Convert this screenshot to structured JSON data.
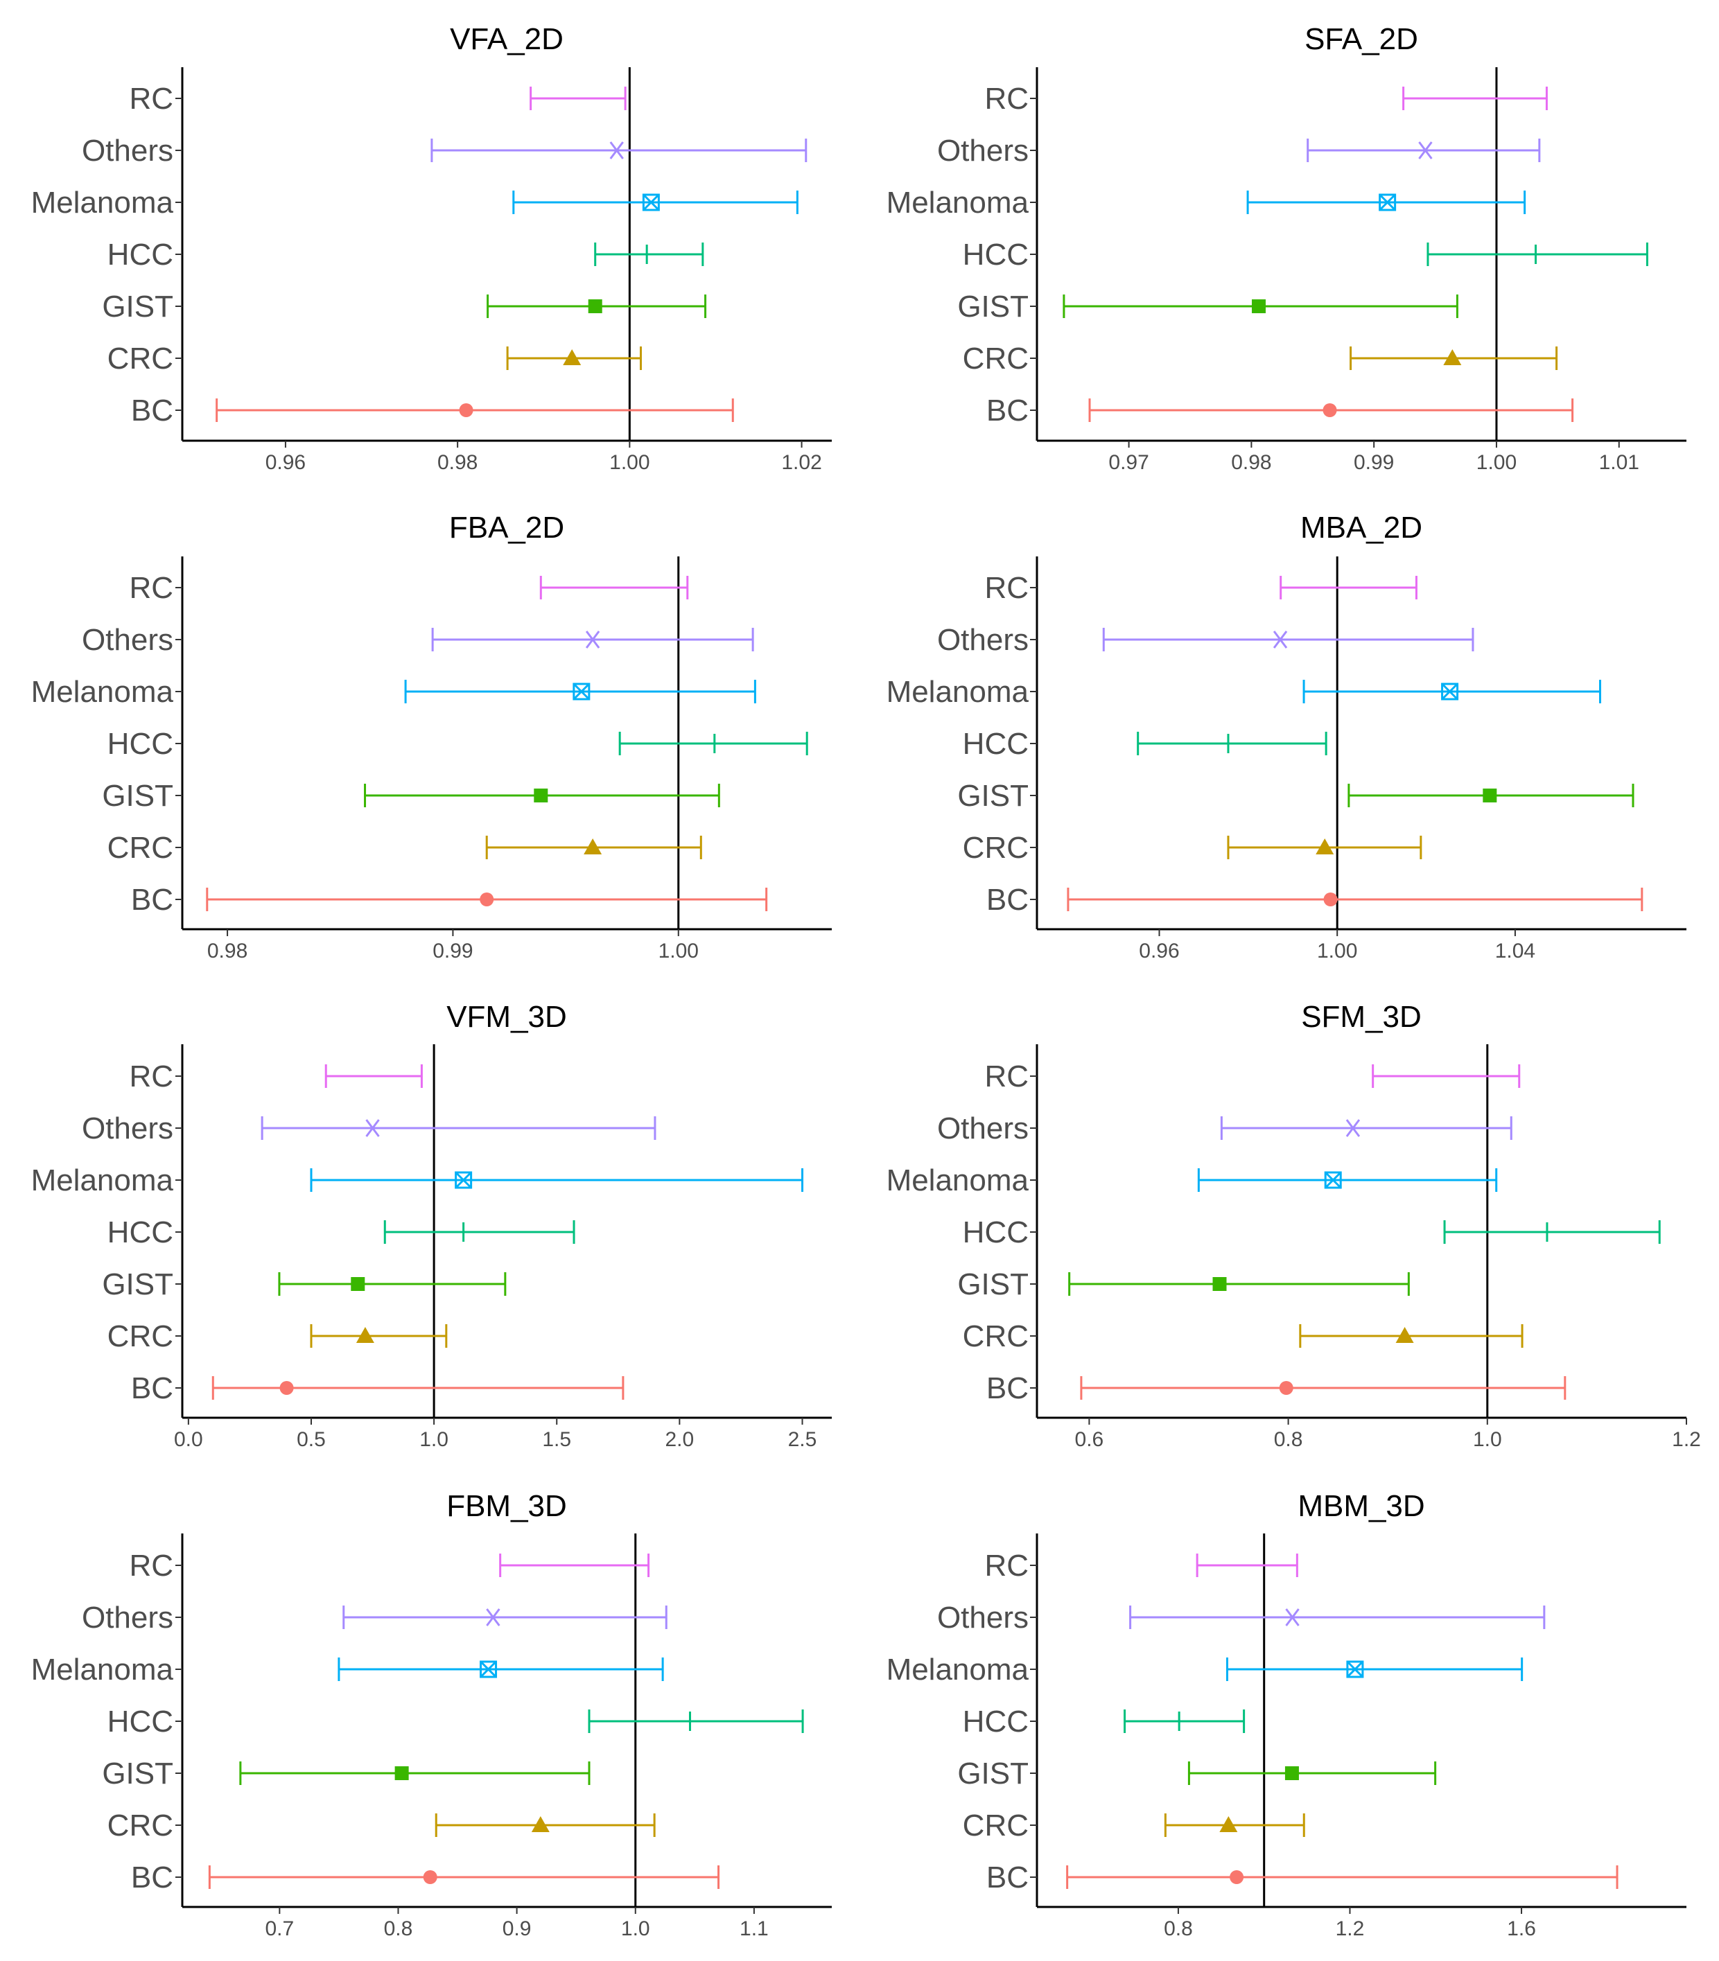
{
  "chart_data": [
    {
      "type": "forest",
      "title": "VFA_2D",
      "categories": [
        "RC",
        "Others",
        "Melanoma",
        "HCC",
        "GIST",
        "CRC",
        "BC"
      ],
      "ref": 1.0,
      "xlim": [
        0.948,
        1.0235
      ],
      "ticks": [
        0.96,
        0.98,
        1.0,
        1.02
      ],
      "tick_labels": [
        "0.96",
        "0.98",
        "1.00",
        "1.02"
      ],
      "series": [
        {
          "name": "RC",
          "estimate": null,
          "lower": 0.9885,
          "upper": 0.9995
        },
        {
          "name": "Others",
          "estimate": 0.9985,
          "lower": 0.977,
          "upper": 1.0205
        },
        {
          "name": "Melanoma",
          "estimate": 1.0025,
          "lower": 0.9865,
          "upper": 1.0195
        },
        {
          "name": "HCC",
          "estimate": 1.002,
          "lower": 0.996,
          "upper": 1.0085
        },
        {
          "name": "GIST",
          "estimate": 0.996,
          "lower": 0.9835,
          "upper": 1.0088
        },
        {
          "name": "CRC",
          "estimate": 0.9933,
          "lower": 0.9858,
          "upper": 1.0013
        },
        {
          "name": "BC",
          "estimate": 0.981,
          "lower": 0.952,
          "upper": 1.012
        }
      ]
    },
    {
      "type": "forest",
      "title": "SFA_2D",
      "categories": [
        "RC",
        "Others",
        "Melanoma",
        "HCC",
        "GIST",
        "CRC",
        "BC"
      ],
      "ref": 1.0,
      "xlim": [
        0.9625,
        1.0155
      ],
      "ticks": [
        0.97,
        0.98,
        0.99,
        1.0,
        1.01
      ],
      "tick_labels": [
        "0.97",
        "0.98",
        "0.99",
        "1.00",
        "1.01"
      ],
      "series": [
        {
          "name": "RC",
          "estimate": null,
          "lower": 0.9924,
          "upper": 1.0041
        },
        {
          "name": "Others",
          "estimate": 0.9942,
          "lower": 0.9846,
          "upper": 1.0035
        },
        {
          "name": "Melanoma",
          "estimate": 0.9911,
          "lower": 0.9797,
          "upper": 1.0023
        },
        {
          "name": "HCC",
          "estimate": 1.0032,
          "lower": 0.9944,
          "upper": 1.0123
        },
        {
          "name": "GIST",
          "estimate": 0.9806,
          "lower": 0.9647,
          "upper": 0.9968
        },
        {
          "name": "CRC",
          "estimate": 0.9964,
          "lower": 0.9881,
          "upper": 1.0049
        },
        {
          "name": "BC",
          "estimate": 0.9864,
          "lower": 0.9668,
          "upper": 1.0062
        }
      ]
    },
    {
      "type": "forest",
      "title": "FBA_2D",
      "categories": [
        "RC",
        "Others",
        "Melanoma",
        "HCC",
        "GIST",
        "CRC",
        "BC"
      ],
      "ref": 1.0,
      "xlim": [
        0.978,
        1.0068
      ],
      "ticks": [
        0.98,
        0.99,
        1.0
      ],
      "tick_labels": [
        "0.98",
        "0.99",
        "1.00"
      ],
      "series": [
        {
          "name": "RC",
          "estimate": null,
          "lower": 0.9939,
          "upper": 1.0004
        },
        {
          "name": "Others",
          "estimate": 0.9962,
          "lower": 0.9891,
          "upper": 1.0033
        },
        {
          "name": "Melanoma",
          "estimate": 0.9957,
          "lower": 0.9879,
          "upper": 1.0034
        },
        {
          "name": "HCC",
          "estimate": 1.0016,
          "lower": 0.9974,
          "upper": 1.0057
        },
        {
          "name": "GIST",
          "estimate": 0.9939,
          "lower": 0.9861,
          "upper": 1.0018
        },
        {
          "name": "CRC",
          "estimate": 0.9962,
          "lower": 0.9915,
          "upper": 1.001
        },
        {
          "name": "BC",
          "estimate": 0.9915,
          "lower": 0.9791,
          "upper": 1.0039
        }
      ]
    },
    {
      "type": "forest",
      "title": "MBA_2D",
      "categories": [
        "RC",
        "Others",
        "Melanoma",
        "HCC",
        "GIST",
        "CRC",
        "BC"
      ],
      "ref": 1.0,
      "xlim": [
        0.9325,
        1.0785
      ],
      "ticks": [
        0.96,
        1.0,
        1.04
      ],
      "tick_labels": [
        "0.96",
        "1.00",
        "1.04"
      ],
      "series": [
        {
          "name": "RC",
          "estimate": null,
          "lower": 0.9873,
          "upper": 1.0178
        },
        {
          "name": "Others",
          "estimate": 0.9872,
          "lower": 0.9475,
          "upper": 1.0305
        },
        {
          "name": "Melanoma",
          "estimate": 1.0253,
          "lower": 0.9925,
          "upper": 1.0591
        },
        {
          "name": "HCC",
          "estimate": 0.9755,
          "lower": 0.9552,
          "upper": 0.9975
        },
        {
          "name": "GIST",
          "estimate": 1.0343,
          "lower": 1.0026,
          "upper": 1.0665
        },
        {
          "name": "CRC",
          "estimate": 0.9972,
          "lower": 0.9755,
          "upper": 1.0188
        },
        {
          "name": "BC",
          "estimate": 0.9985,
          "lower": 0.9395,
          "upper": 1.0685
        }
      ]
    },
    {
      "type": "forest",
      "title": "VFM_3D",
      "categories": [
        "RC",
        "Others",
        "Melanoma",
        "HCC",
        "GIST",
        "CRC",
        "BC"
      ],
      "ref": 1.0,
      "xlim": [
        -0.025,
        2.62
      ],
      "ticks": [
        0.0,
        0.5,
        1.0,
        1.5,
        2.0,
        2.5
      ],
      "tick_labels": [
        "0.0",
        "0.5",
        "1.0",
        "1.5",
        "2.0",
        "2.5"
      ],
      "series": [
        {
          "name": "RC",
          "estimate": null,
          "lower": 0.56,
          "upper": 0.95
        },
        {
          "name": "Others",
          "estimate": 0.75,
          "lower": 0.3,
          "upper": 1.9
        },
        {
          "name": "Melanoma",
          "estimate": 1.12,
          "lower": 0.5,
          "upper": 2.5
        },
        {
          "name": "HCC",
          "estimate": 1.12,
          "lower": 0.8,
          "upper": 1.57
        },
        {
          "name": "GIST",
          "estimate": 0.69,
          "lower": 0.37,
          "upper": 1.29
        },
        {
          "name": "CRC",
          "estimate": 0.72,
          "lower": 0.5,
          "upper": 1.05
        },
        {
          "name": "BC",
          "estimate": 0.4,
          "lower": 0.1,
          "upper": 1.77
        }
      ]
    },
    {
      "type": "forest",
      "title": "SFM_3D",
      "categories": [
        "RC",
        "Others",
        "Melanoma",
        "HCC",
        "GIST",
        "CRC",
        "BC"
      ],
      "ref": 1.0,
      "xlim": [
        0.5475,
        1.2
      ],
      "ticks": [
        0.6,
        0.8,
        1.0,
        1.2
      ],
      "tick_labels": [
        "0.6",
        "0.8",
        "1.0",
        "1.2"
      ],
      "series": [
        {
          "name": "RC",
          "estimate": null,
          "lower": 0.885,
          "upper": 1.032
        },
        {
          "name": "Others",
          "estimate": 0.865,
          "lower": 0.733,
          "upper": 1.024
        },
        {
          "name": "Melanoma",
          "estimate": 0.845,
          "lower": 0.71,
          "upper": 1.009
        },
        {
          "name": "HCC",
          "estimate": 1.06,
          "lower": 0.957,
          "upper": 1.173
        },
        {
          "name": "GIST",
          "estimate": 0.731,
          "lower": 0.58,
          "upper": 0.921
        },
        {
          "name": "CRC",
          "estimate": 0.917,
          "lower": 0.812,
          "upper": 1.035
        },
        {
          "name": "BC",
          "estimate": 0.798,
          "lower": 0.592,
          "upper": 1.078
        }
      ]
    },
    {
      "type": "forest",
      "title": "FBM_3D",
      "categories": [
        "RC",
        "Others",
        "Melanoma",
        "HCC",
        "GIST",
        "CRC",
        "BC"
      ],
      "ref": 1.0,
      "xlim": [
        0.618,
        1.1655
      ],
      "ticks": [
        0.7,
        0.8,
        0.9,
        1.0,
        1.1
      ],
      "tick_labels": [
        "0.7",
        "0.8",
        "0.9",
        "1.0",
        "1.1"
      ],
      "series": [
        {
          "name": "RC",
          "estimate": null,
          "lower": 0.886,
          "upper": 1.011
        },
        {
          "name": "Others",
          "estimate": 0.88,
          "lower": 0.754,
          "upper": 1.026
        },
        {
          "name": "Melanoma",
          "estimate": 0.876,
          "lower": 0.75,
          "upper": 1.023
        },
        {
          "name": "HCC",
          "estimate": 1.046,
          "lower": 0.961,
          "upper": 1.141
        },
        {
          "name": "GIST",
          "estimate": 0.803,
          "lower": 0.667,
          "upper": 0.961
        },
        {
          "name": "CRC",
          "estimate": 0.92,
          "lower": 0.832,
          "upper": 1.016
        },
        {
          "name": "BC",
          "estimate": 0.827,
          "lower": 0.641,
          "upper": 1.07
        }
      ]
    },
    {
      "type": "forest",
      "title": "MBM_3D",
      "categories": [
        "RC",
        "Others",
        "Melanoma",
        "HCC",
        "GIST",
        "CRC",
        "BC"
      ],
      "ref": 1.0,
      "xlim": [
        0.4705,
        1.9845
      ],
      "ticks": [
        0.8,
        1.2,
        1.6
      ],
      "tick_labels": [
        "0.8",
        "1.2",
        "1.6"
      ],
      "series": [
        {
          "name": "RC",
          "estimate": null,
          "lower": 0.844,
          "upper": 1.077
        },
        {
          "name": "Others",
          "estimate": 1.066,
          "lower": 0.688,
          "upper": 1.653
        },
        {
          "name": "Melanoma",
          "estimate": 1.212,
          "lower": 0.914,
          "upper": 1.601
        },
        {
          "name": "HCC",
          "estimate": 0.802,
          "lower": 0.675,
          "upper": 0.953
        },
        {
          "name": "GIST",
          "estimate": 1.065,
          "lower": 0.825,
          "upper": 1.399
        },
        {
          "name": "CRC",
          "estimate": 0.917,
          "lower": 0.77,
          "upper": 1.093
        },
        {
          "name": "BC",
          "estimate": 0.936,
          "lower": 0.541,
          "upper": 1.823
        }
      ]
    }
  ],
  "colors": {
    "RC": "#e76bf3",
    "Others": "#a58aff",
    "Melanoma": "#00b0f6",
    "HCC": "#00bf7d",
    "GIST": "#39b600",
    "CRC": "#c49a00",
    "BC": "#f8766d"
  },
  "markers": {
    "RC": "none",
    "Others": "asterisk",
    "Melanoma": "boxed-x",
    "HCC": "plus",
    "GIST": "square",
    "CRC": "triangle",
    "BC": "circle"
  }
}
